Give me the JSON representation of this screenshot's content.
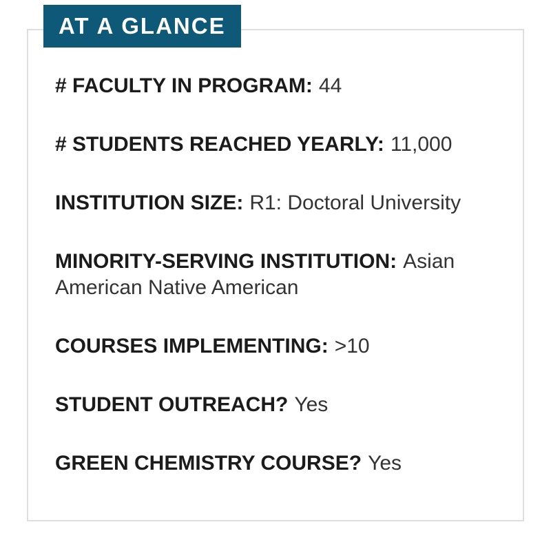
{
  "badge": {
    "label": "AT A GLANCE"
  },
  "stats": {
    "rows": [
      {
        "label": "# FACULTY IN PROGRAM:",
        "value": "44"
      },
      {
        "label": "# STUDENTS REACHED YEARLY:",
        "value": "11,000"
      },
      {
        "label": "INSTITUTION SIZE:",
        "value": "R1: Doctoral University"
      },
      {
        "label": "MINORITY-SERVING INSTITUTION:",
        "value": "Asian American Native American"
      },
      {
        "label": "COURSES IMPLEMENTING:",
        "value": ">10"
      },
      {
        "label": "STUDENT OUTREACH?",
        "value": "Yes"
      },
      {
        "label": "GREEN CHEMISTRY COURSE?",
        "value": "Yes"
      }
    ]
  },
  "colors": {
    "badge_bg": "#0e5878",
    "badge_text": "#ffffff",
    "border": "#dedede",
    "label": "#1b1b1b",
    "value": "#333333",
    "page_bg": "#ffffff"
  }
}
